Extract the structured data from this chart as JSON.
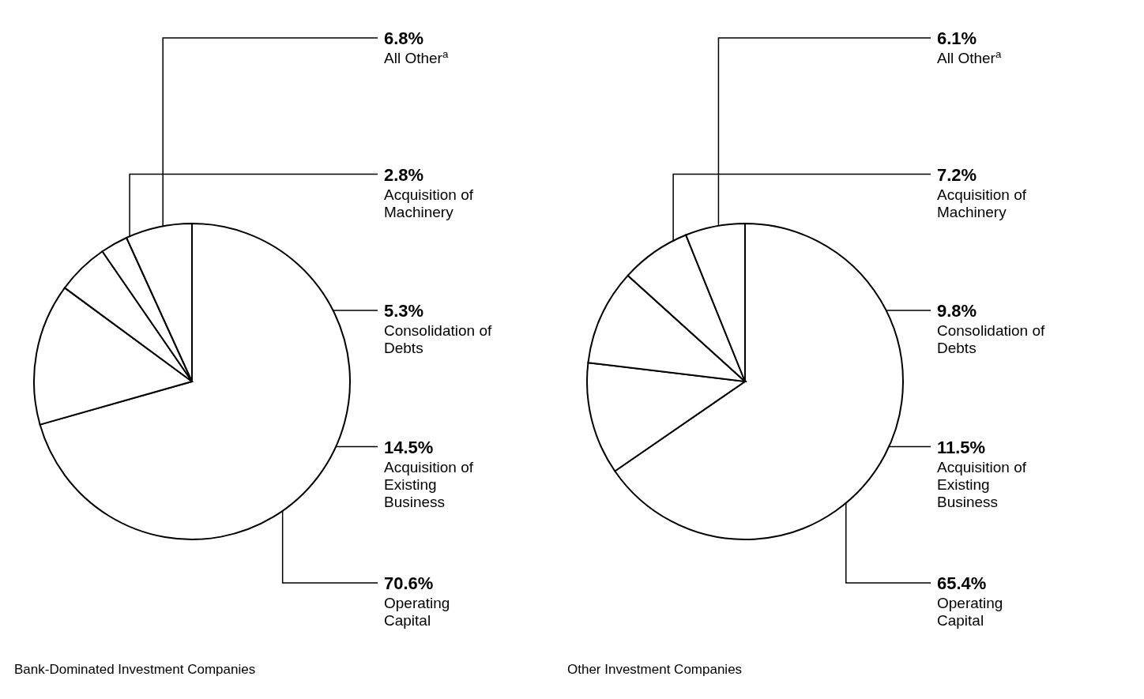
{
  "chart_data": [
    {
      "type": "pie",
      "title": "Bank-Dominated Investment Companies",
      "categories": [
        "Operating Capital",
        "Acquisition of Existing Business",
        "Consolidation of Debts",
        "Acquisition of Machinery",
        "All Other$^{a}$"
      ],
      "values": [
        70.6,
        14.5,
        5.3,
        2.8,
        6.8
      ],
      "colors": [
        "#ffffff",
        "#ffffff",
        "#ffffff",
        "#ffffff",
        "#ffffff"
      ],
      "value_labels": [
        "70.6%",
        "14.5%",
        "5.3%",
        "2.8%",
        "6.8%"
      ]
    },
    {
      "type": "pie",
      "title": "Other Investment Companies",
      "categories": [
        "Operating Capital",
        "Acquisition of Existing Business",
        "Consolidation of Debts",
        "Acquisition of Machinery",
        "All Other$^{a}$"
      ],
      "values": [
        65.4,
        11.5,
        9.8,
        7.2,
        6.1
      ],
      "colors": [
        "#ffffff",
        "#ffffff",
        "#ffffff",
        "#ffffff",
        "#ffffff"
      ],
      "value_labels": [
        "65.4%",
        "11.5%",
        "9.8%",
        "7.2%",
        "6.1%"
      ]
    }
  ]
}
